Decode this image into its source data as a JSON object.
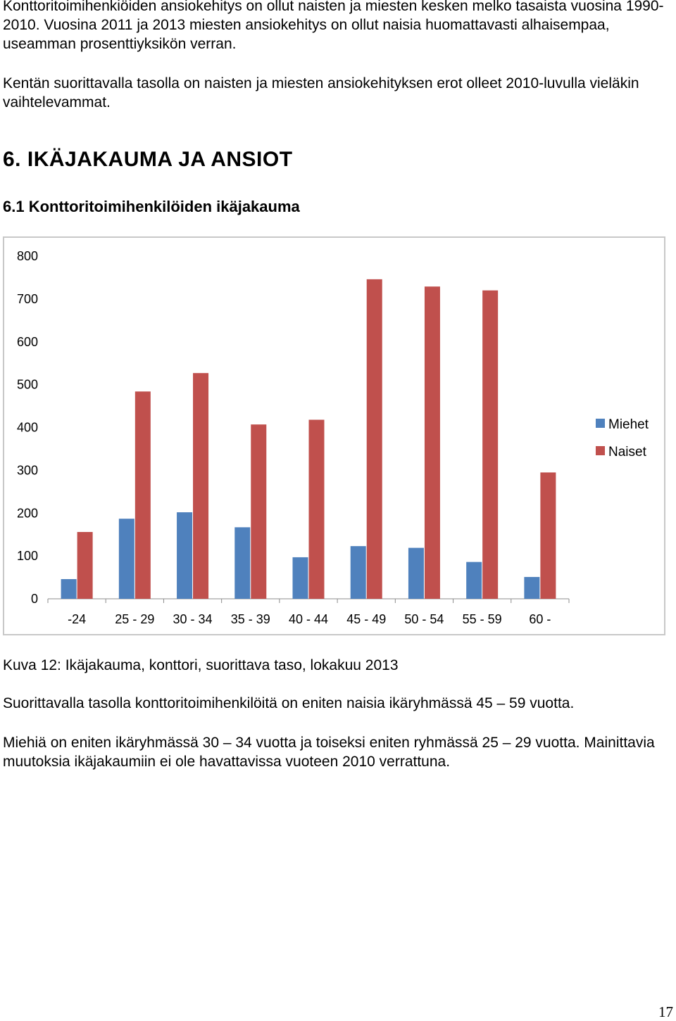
{
  "paragraphs": {
    "p1": "Konttoritoimihenkiöiden ansiokehitys on ollut naisten ja miesten kesken melko tasaista vuosina 1990-2010. Vuosina 2011 ja 2013 miesten ansiokehitys on ollut naisia huomattavasti alhaisempaa, useamman prosenttiyksikön verran.",
    "p2": "Kentän suorittavalla tasolla on naisten ja miesten ansiokehityksen erot olleet 2010-luvulla vieläkin vaihtelevammat.",
    "caption": "Kuva 12: Ikäjakauma, konttori, suorittava taso, lokakuu 2013",
    "p3": "Suorittavalla tasolla konttoritoimihenkilöitä on eniten naisia ikäryhmässä 45 – 59 vuotta.",
    "p4": "Miehiä on eniten ikäryhmässä 30 – 34 vuotta ja toiseksi eniten ryhmässä 25 – 29 vuotta. Mainittavia muutoksia ikäjakaumiin ei ole havattavissa vuoteen 2010 verrattuna."
  },
  "headings": {
    "section": "6. IKÄJAKAUMA JA ANSIOT",
    "subsection": "6.1 Konttoritoimihenkilöiden ikäjakauma"
  },
  "page_number": "17",
  "chart_data": {
    "type": "bar",
    "title": "",
    "xlabel": "",
    "ylabel": "",
    "categories": [
      "-24",
      "25 - 29",
      "30 - 34",
      "35 - 39",
      "40 - 44",
      "45 - 49",
      "50 - 54",
      "55 - 59",
      "60 -"
    ],
    "series": [
      {
        "name": "Miehet",
        "color": "#4f81bd",
        "values": [
          46,
          187,
          202,
          167,
          97,
          123,
          119,
          86,
          51
        ]
      },
      {
        "name": "Naiset",
        "color": "#c0504d",
        "values": [
          156,
          484,
          527,
          407,
          418,
          746,
          729,
          720,
          295
        ]
      }
    ],
    "ylim": [
      0,
      800
    ],
    "yticks": [
      0,
      100,
      200,
      300,
      400,
      500,
      600,
      700,
      800
    ],
    "grid": false,
    "legend_position": "right"
  }
}
